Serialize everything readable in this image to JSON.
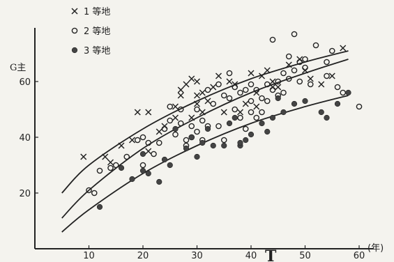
{
  "chart_data": {
    "type": "scatter",
    "title": "",
    "xlabel": "T",
    "x_unit": "(年)",
    "ylabel": "G主",
    "xlim": [
      0,
      60
    ],
    "ylim": [
      0,
      80
    ],
    "x_ticks": [
      10,
      20,
      30,
      40,
      50,
      60
    ],
    "y_ticks": [
      20,
      40,
      60
    ],
    "grid": false,
    "legend_position": "top-left",
    "series": [
      {
        "name": "1 等地",
        "marker": "x",
        "points": [
          [
            9,
            33
          ],
          [
            13,
            33
          ],
          [
            14,
            31
          ],
          [
            16,
            37
          ],
          [
            18,
            39
          ],
          [
            19,
            49
          ],
          [
            21,
            49
          ],
          [
            21,
            35
          ],
          [
            23,
            42
          ],
          [
            24,
            44
          ],
          [
            26,
            47
          ],
          [
            26,
            51
          ],
          [
            27,
            55
          ],
          [
            27,
            57
          ],
          [
            28,
            59
          ],
          [
            29,
            61
          ],
          [
            29,
            47
          ],
          [
            30,
            52
          ],
          [
            30,
            55
          ],
          [
            30,
            60
          ],
          [
            31,
            49
          ],
          [
            31,
            56
          ],
          [
            32,
            53
          ],
          [
            33,
            58
          ],
          [
            34,
            62
          ],
          [
            35,
            49
          ],
          [
            36,
            60
          ],
          [
            37,
            59
          ],
          [
            38,
            49
          ],
          [
            39,
            52
          ],
          [
            40,
            63
          ],
          [
            41,
            51
          ],
          [
            41,
            56
          ],
          [
            42,
            62
          ],
          [
            43,
            64
          ],
          [
            44,
            58
          ],
          [
            44,
            60
          ],
          [
            45,
            58
          ],
          [
            47,
            66
          ],
          [
            49,
            68
          ],
          [
            50,
            64
          ],
          [
            51,
            61
          ],
          [
            53,
            59
          ],
          [
            55,
            62
          ],
          [
            57,
            72
          ]
        ]
      },
      {
        "name": "2 等地",
        "marker": "circle",
        "points": [
          [
            10,
            21
          ],
          [
            11,
            20
          ],
          [
            12,
            28
          ],
          [
            14,
            29
          ],
          [
            15,
            30
          ],
          [
            17,
            33
          ],
          [
            19,
            39
          ],
          [
            20,
            30
          ],
          [
            20,
            40
          ],
          [
            21,
            38
          ],
          [
            22,
            34
          ],
          [
            23,
            38
          ],
          [
            24,
            43
          ],
          [
            25,
            46
          ],
          [
            25,
            51
          ],
          [
            26,
            41
          ],
          [
            27,
            45
          ],
          [
            27,
            50
          ],
          [
            28,
            37
          ],
          [
            28,
            39
          ],
          [
            29,
            40
          ],
          [
            29,
            44
          ],
          [
            30,
            42
          ],
          [
            30,
            50
          ],
          [
            31,
            39
          ],
          [
            31,
            46
          ],
          [
            32,
            44
          ],
          [
            32,
            57
          ],
          [
            33,
            52
          ],
          [
            34,
            44
          ],
          [
            34,
            59
          ],
          [
            35,
            39
          ],
          [
            35,
            55
          ],
          [
            36,
            54
          ],
          [
            36,
            63
          ],
          [
            37,
            58
          ],
          [
            37,
            50
          ],
          [
            38,
            47
          ],
          [
            38,
            56
          ],
          [
            39,
            43
          ],
          [
            39,
            57
          ],
          [
            40,
            49
          ],
          [
            40,
            53
          ],
          [
            40,
            59
          ],
          [
            41,
            47
          ],
          [
            41,
            57
          ],
          [
            42,
            49
          ],
          [
            42,
            54
          ],
          [
            43,
            53
          ],
          [
            43,
            59
          ],
          [
            44,
            75
          ],
          [
            44,
            57
          ],
          [
            45,
            55
          ],
          [
            45,
            60
          ],
          [
            46,
            56
          ],
          [
            46,
            63
          ],
          [
            47,
            69
          ],
          [
            47,
            61
          ],
          [
            48,
            64
          ],
          [
            48,
            77
          ],
          [
            49,
            60
          ],
          [
            49,
            67
          ],
          [
            50,
            68
          ],
          [
            50,
            65
          ],
          [
            51,
            59
          ],
          [
            52,
            73
          ],
          [
            54,
            62
          ],
          [
            54,
            67
          ],
          [
            55,
            71
          ],
          [
            56,
            58
          ],
          [
            57,
            56
          ],
          [
            60,
            51
          ]
        ]
      },
      {
        "name": "3 等地",
        "marker": "filled-circle",
        "points": [
          [
            12,
            15
          ],
          [
            16,
            29
          ],
          [
            18,
            25
          ],
          [
            20,
            28
          ],
          [
            20,
            34
          ],
          [
            21,
            27
          ],
          [
            23,
            24
          ],
          [
            24,
            32
          ],
          [
            25,
            30
          ],
          [
            26,
            43
          ],
          [
            28,
            36
          ],
          [
            29,
            40
          ],
          [
            30,
            33
          ],
          [
            31,
            38
          ],
          [
            32,
            43
          ],
          [
            33,
            37
          ],
          [
            35,
            37
          ],
          [
            36,
            45
          ],
          [
            37,
            47
          ],
          [
            38,
            37
          ],
          [
            38,
            38
          ],
          [
            39,
            39
          ],
          [
            40,
            41
          ],
          [
            42,
            45
          ],
          [
            43,
            42
          ],
          [
            44,
            47
          ],
          [
            45,
            54
          ],
          [
            46,
            49
          ],
          [
            48,
            52
          ],
          [
            50,
            53
          ],
          [
            53,
            49
          ],
          [
            54,
            47
          ],
          [
            56,
            52
          ],
          [
            58,
            56
          ]
        ]
      }
    ],
    "curves": [
      {
        "name": "1 等地",
        "points": [
          [
            5,
            20
          ],
          [
            10,
            30
          ],
          [
            20,
            43
          ],
          [
            30,
            53
          ],
          [
            40,
            61
          ],
          [
            50,
            67
          ],
          [
            58,
            71
          ]
        ]
      },
      {
        "name": "2 等地",
        "points": [
          [
            5,
            11
          ],
          [
            10,
            21
          ],
          [
            20,
            36
          ],
          [
            30,
            47
          ],
          [
            40,
            56
          ],
          [
            50,
            63
          ],
          [
            58,
            68
          ]
        ]
      },
      {
        "name": "3 等地",
        "points": [
          [
            5,
            6
          ],
          [
            10,
            14
          ],
          [
            20,
            27
          ],
          [
            30,
            37
          ],
          [
            40,
            45
          ],
          [
            50,
            51
          ],
          [
            58,
            55
          ]
        ]
      }
    ]
  }
}
